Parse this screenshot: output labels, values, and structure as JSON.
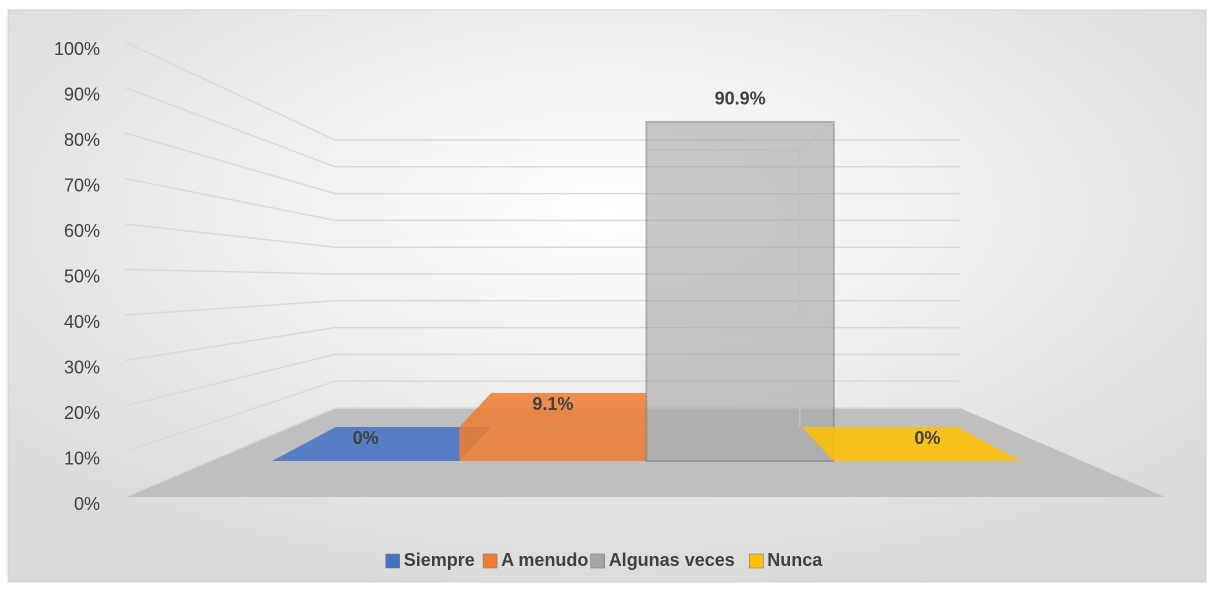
{
  "chart_data": {
    "type": "bar3d",
    "series": [
      {
        "name": "Siempre",
        "color": "#4472c4",
        "values": [
          0
        ],
        "value_labels": [
          "0%"
        ]
      },
      {
        "name": "A menudo",
        "color": "#ed7d31",
        "values": [
          9.1
        ],
        "value_labels": [
          "9.1%"
        ]
      },
      {
        "name": "Algunas veces",
        "color": "#a5a5a5",
        "values": [
          90.9
        ],
        "value_labels": [
          "90.9%"
        ]
      },
      {
        "name": "Nunca",
        "color": "#ffc000",
        "values": [
          0
        ],
        "value_labels": [
          "0%"
        ]
      }
    ],
    "ylim": [
      0,
      100
    ],
    "yticks": [
      {
        "value": 0,
        "label": "0%"
      },
      {
        "value": 10,
        "label": "10%"
      },
      {
        "value": 20,
        "label": "20%"
      },
      {
        "value": 30,
        "label": "30%"
      },
      {
        "value": 40,
        "label": "40%"
      },
      {
        "value": 50,
        "label": "50%"
      },
      {
        "value": 60,
        "label": "60%"
      },
      {
        "value": 70,
        "label": "70%"
      },
      {
        "value": 80,
        "label": "80%"
      },
      {
        "value": 90,
        "label": "90%"
      },
      {
        "value": 100,
        "label": "100%"
      }
    ],
    "grid": true,
    "legend": "bottom"
  }
}
